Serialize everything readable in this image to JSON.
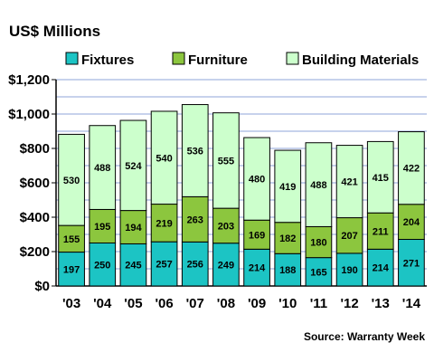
{
  "header": {
    "title": "US$ Millions",
    "source": "Source: Warranty Week"
  },
  "colors": {
    "background": "#ffffff",
    "plot_background": "#ffffff",
    "grid": "#8fa4d8",
    "fixtures": "#1cc4c4",
    "furniture": "#8cc63e",
    "building_materials": "#ccffcc",
    "bar_edge": "#000000"
  },
  "legend": [
    {
      "key": "fixtures",
      "label": "Fixtures"
    },
    {
      "key": "furniture",
      "label": "Furniture"
    },
    {
      "key": "building_materials",
      "label": "Building Materials"
    }
  ],
  "chart_data": {
    "type": "bar",
    "stacked": true,
    "title": "US$ Millions",
    "xlabel": "",
    "ylabel": "",
    "categories": [
      "'03",
      "'04",
      "'05",
      "'06",
      "'07",
      "'08",
      "'09",
      "'10",
      "'11",
      "'12",
      "'13",
      "'14"
    ],
    "series": [
      {
        "key": "fixtures",
        "name": "Fixtures",
        "values": [
          197,
          250,
          245,
          257,
          256,
          249,
          214,
          188,
          165,
          190,
          214,
          271
        ]
      },
      {
        "key": "furniture",
        "name": "Furniture",
        "values": [
          155,
          195,
          194,
          219,
          263,
          203,
          169,
          182,
          180,
          207,
          211,
          204
        ]
      },
      {
        "key": "building_materials",
        "name": "Building Materials",
        "values": [
          530,
          488,
          524,
          540,
          536,
          555,
          480,
          419,
          488,
          421,
          415,
          422
        ]
      }
    ],
    "ylim": [
      0,
      1200
    ],
    "yticks": [
      0,
      200,
      400,
      600,
      800,
      1000,
      1200
    ],
    "ytick_labels": [
      "$0",
      "$200",
      "$400",
      "$600",
      "$800",
      "$1,000",
      "$1,200"
    ],
    "minor_gridline_step": 100,
    "grid": true,
    "legend_position": "top"
  }
}
